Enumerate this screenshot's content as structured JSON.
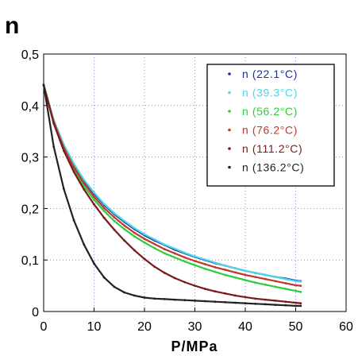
{
  "chart_data": {
    "type": "scatter",
    "title": "n",
    "xlabel": "P/MPa",
    "ylabel": "",
    "xlim": [
      0,
      60
    ],
    "ylim": [
      0,
      0.5
    ],
    "x_ticks": [
      0,
      10,
      20,
      30,
      40,
      50,
      60
    ],
    "x_tick_labels": [
      "0",
      "10",
      "20",
      "30",
      "40",
      "50",
      "60"
    ],
    "y_ticks": [
      0,
      0.1,
      0.2,
      0.3,
      0.4,
      0.5
    ],
    "y_tick_labels": [
      "0",
      "0,1",
      "0,2",
      "0,3",
      "0,4",
      "0,5"
    ],
    "grid": true,
    "legend_position": "top-right",
    "x": [
      0,
      2,
      4,
      6,
      8,
      10,
      12,
      14,
      16,
      18,
      20,
      22,
      24,
      26,
      28,
      30,
      32,
      34,
      36,
      38,
      40,
      42,
      44,
      46,
      48,
      50,
      51
    ],
    "series": [
      {
        "name": "n (22.1°C)",
        "color": "#1a2fa8",
        "values": [
          0.44,
          0.37,
          0.322,
          0.285,
          0.254,
          0.229,
          0.207,
          0.189,
          0.174,
          0.16,
          0.148,
          0.138,
          0.129,
          0.12,
          0.113,
          0.106,
          0.1,
          0.094,
          0.089,
          0.084,
          0.079,
          0.075,
          0.071,
          0.067,
          0.064,
          0.06,
          0.059
        ]
      },
      {
        "name": "n (39.3°C)",
        "color": "#4fd6e6",
        "values": [
          0.44,
          0.372,
          0.324,
          0.287,
          0.256,
          0.231,
          0.209,
          0.191,
          0.176,
          0.162,
          0.15,
          0.14,
          0.13,
          0.122,
          0.114,
          0.107,
          0.101,
          0.095,
          0.089,
          0.084,
          0.079,
          0.075,
          0.071,
          0.067,
          0.063,
          0.059,
          0.058
        ]
      },
      {
        "name": "n (56.2°C)",
        "color": "#2ecc40",
        "values": [
          0.44,
          0.366,
          0.314,
          0.275,
          0.243,
          0.217,
          0.195,
          0.176,
          0.16,
          0.146,
          0.134,
          0.123,
          0.113,
          0.105,
          0.097,
          0.09,
          0.083,
          0.077,
          0.071,
          0.066,
          0.061,
          0.056,
          0.052,
          0.048,
          0.044,
          0.04,
          0.038
        ]
      },
      {
        "name": "n (76.2°C)",
        "color": "#c0392b",
        "values": [
          0.44,
          0.368,
          0.318,
          0.28,
          0.249,
          0.223,
          0.201,
          0.183,
          0.167,
          0.153,
          0.141,
          0.131,
          0.121,
          0.113,
          0.105,
          0.098,
          0.092,
          0.086,
          0.081,
          0.076,
          0.071,
          0.067,
          0.063,
          0.059,
          0.055,
          0.051,
          0.05
        ]
      },
      {
        "name": "n (111.2°C)",
        "color": "#7a1a1a",
        "values": [
          0.44,
          0.365,
          0.312,
          0.271,
          0.237,
          0.208,
          0.182,
          0.159,
          0.138,
          0.119,
          0.102,
          0.087,
          0.075,
          0.065,
          0.057,
          0.05,
          0.044,
          0.039,
          0.035,
          0.031,
          0.028,
          0.025,
          0.023,
          0.021,
          0.019,
          0.017,
          0.016
        ]
      },
      {
        "name": "n (136.2°C)",
        "color": "#222222",
        "values": [
          0.44,
          0.32,
          0.238,
          0.177,
          0.13,
          0.093,
          0.066,
          0.048,
          0.037,
          0.031,
          0.027,
          0.025,
          0.024,
          0.023,
          0.022,
          0.021,
          0.02,
          0.019,
          0.018,
          0.017,
          0.016,
          0.015,
          0.014,
          0.013,
          0.012,
          0.011,
          0.011
        ]
      }
    ]
  }
}
